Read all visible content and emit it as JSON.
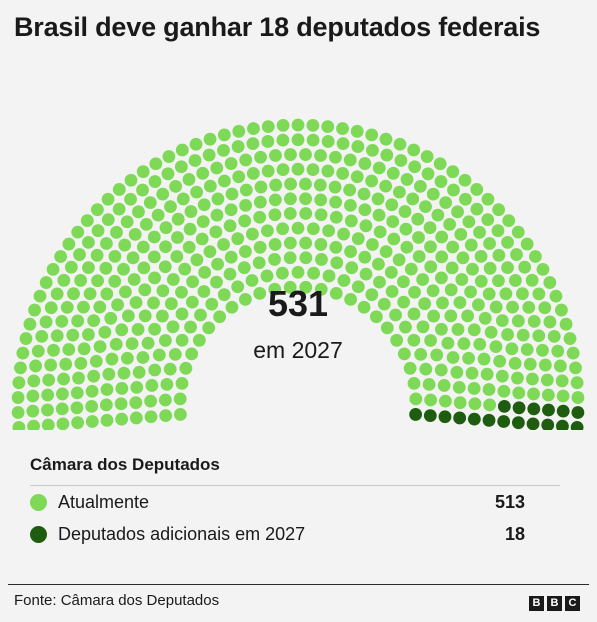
{
  "title": "Brasil deve ganhar 18 deputados federais",
  "center": {
    "total": "531",
    "subtitle": "em 2027"
  },
  "legend": {
    "heading": "Câmara dos Deputados",
    "items": [
      {
        "label": "Atualmente",
        "value": "513",
        "color": "#7ed957"
      },
      {
        "label": "Deputados adicionais em 2027",
        "value": "18",
        "color": "#1e5c0f"
      }
    ]
  },
  "source": "Fonte: Câmara dos Deputados",
  "logo": [
    "B",
    "B",
    "C"
  ],
  "chart_data": {
    "type": "parliament",
    "title": "Brasil deve ganhar 18 deputados federais",
    "total": 531,
    "series": [
      {
        "name": "Atualmente",
        "values": [
          513
        ],
        "color": "#7ed957"
      },
      {
        "name": "Deputados adicionais em 2027",
        "values": [
          18
        ],
        "color": "#1e5c0f"
      }
    ]
  }
}
